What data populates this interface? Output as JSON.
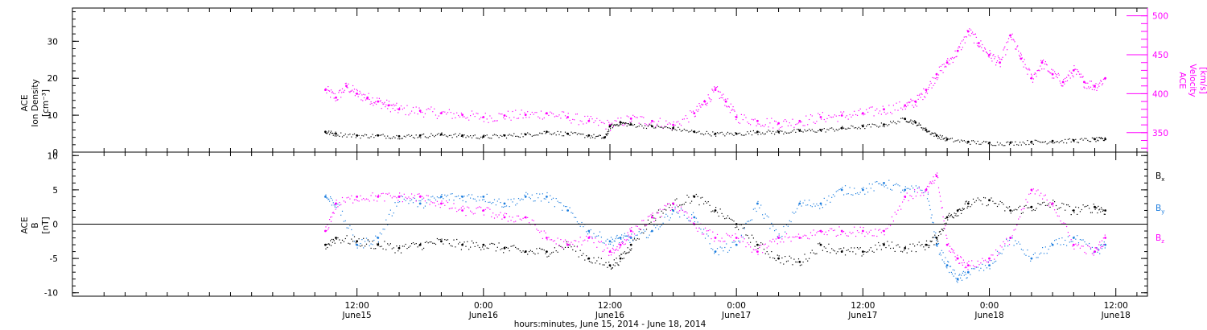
{
  "colors": {
    "density": "#000000",
    "velocity": "#ff00ff",
    "bx": "#000000",
    "by": "#1f7fdf",
    "bz": "#ff00ff"
  },
  "xaxis": {
    "range_hours": [
      -15,
      87
    ],
    "ticks": [
      {
        "hour": 12,
        "time": "12:00",
        "date": "June15"
      },
      {
        "hour": 24,
        "time": "0:00",
        "date": "June16"
      },
      {
        "hour": 36,
        "time": "12:00",
        "date": "June16"
      },
      {
        "hour": 48,
        "time": "0:00",
        "date": "June17"
      },
      {
        "hour": 60,
        "time": "12:00",
        "date": "June17"
      },
      {
        "hour": 72,
        "time": "0:00",
        "date": "June18"
      },
      {
        "hour": 84,
        "time": "12:00",
        "date": "June18"
      }
    ],
    "label": "hours:minutes, June 15, 2014 - June 18, 2014"
  },
  "chart_data": [
    {
      "type": "scatter",
      "panel": "top",
      "ylabel_left": [
        "ACE",
        "Ion Density",
        "[cm⁻³]"
      ],
      "ylabel_right": [
        "ACE",
        "Velocity",
        "[km/s]"
      ],
      "ylim_left": [
        0,
        39
      ],
      "ylim_right": [
        325,
        510
      ],
      "yticks_left": [
        0,
        10,
        20,
        30
      ],
      "yticks_right": [
        350,
        400,
        450,
        500
      ],
      "series": [
        {
          "axis": "left",
          "x": [
            9,
            10,
            12,
            14,
            16,
            18,
            20,
            22,
            24,
            26,
            28,
            30,
            32,
            34,
            35.5,
            36,
            37,
            38,
            40,
            42,
            44,
            46,
            48,
            50,
            52,
            54,
            56,
            58,
            60,
            62,
            64,
            65,
            66,
            67,
            68,
            70,
            72,
            74,
            76,
            78,
            80,
            82,
            83
          ],
          "values": [
            5.5,
            5,
            4.5,
            4.5,
            4.3,
            4.5,
            4.8,
            4.5,
            4.2,
            4.5,
            4.8,
            5.5,
            5,
            4.5,
            4,
            7,
            8,
            7.5,
            7,
            6.5,
            5.5,
            5,
            5,
            5.5,
            5.5,
            5.8,
            6,
            6.5,
            7,
            7.5,
            9,
            8,
            6,
            4.5,
            3.5,
            2.8,
            2.5,
            2.5,
            2.8,
            3,
            3.2,
            3.5,
            3.5
          ]
        },
        {
          "axis": "right",
          "x": [
            9,
            10,
            11,
            12,
            13,
            14,
            15,
            16,
            18,
            20,
            22,
            24,
            26,
            28,
            30,
            32,
            34,
            36,
            38,
            40,
            42,
            44,
            45,
            46,
            47,
            48,
            50,
            52,
            54,
            56,
            58,
            60,
            62,
            64,
            65,
            66,
            67,
            68,
            69,
            70,
            71,
            72,
            73,
            74,
            75,
            76,
            77,
            78,
            79,
            80,
            81,
            82,
            83
          ],
          "values": [
            405,
            395,
            410,
            400,
            395,
            390,
            385,
            380,
            378,
            375,
            373,
            370,
            372,
            373,
            375,
            370,
            365,
            360,
            368,
            365,
            360,
            375,
            390,
            405,
            390,
            370,
            365,
            362,
            365,
            370,
            372,
            375,
            380,
            385,
            390,
            405,
            425,
            440,
            455,
            480,
            465,
            450,
            440,
            475,
            445,
            420,
            440,
            425,
            415,
            430,
            415,
            410,
            420
          ]
        }
      ]
    },
    {
      "type": "scatter",
      "panel": "bottom",
      "ylabel": [
        "ACE",
        "B",
        "[nT]"
      ],
      "ylim": [
        -10.5,
        10.5
      ],
      "yticks": [
        -10,
        -5,
        0,
        5,
        10
      ],
      "zero_line": true,
      "series": [
        {
          "name": "Bx",
          "x": [
            9,
            10,
            12,
            14,
            16,
            18,
            20,
            22,
            24,
            26,
            28,
            30,
            32,
            34,
            36,
            37,
            38,
            40,
            42,
            44,
            46,
            48,
            50,
            52,
            54,
            56,
            58,
            60,
            62,
            64,
            66,
            67,
            68,
            69,
            70,
            72,
            74,
            76,
            78,
            80,
            82,
            83
          ],
          "values": [
            -3,
            -2,
            -2.5,
            -3,
            -3.5,
            -3,
            -2.5,
            -3,
            -3,
            -3.5,
            -4,
            -4,
            -3,
            -5,
            -6,
            -5,
            -3,
            1,
            3,
            4,
            2,
            0,
            -3,
            -5,
            -5.5,
            -3,
            -4,
            -4,
            -3,
            -3.5,
            -3,
            -2,
            1,
            2,
            3,
            3.5,
            2,
            2.5,
            3,
            2,
            2.5,
            2
          ]
        },
        {
          "name": "By",
          "x": [
            9,
            10,
            12,
            14,
            16,
            18,
            20,
            22,
            24,
            26,
            28,
            30,
            32,
            34,
            36,
            37,
            38,
            40,
            42,
            44,
            46,
            48,
            50,
            52,
            54,
            56,
            58,
            60,
            62,
            64,
            66,
            67,
            68,
            69,
            70,
            72,
            74,
            76,
            78,
            80,
            82,
            83
          ],
          "values": [
            4,
            3,
            -3,
            -2,
            4,
            3,
            4,
            4,
            4,
            3,
            4,
            4,
            2,
            -1,
            -2.5,
            -2,
            -2,
            -1,
            2,
            1,
            -4,
            -3,
            3,
            -2,
            3,
            3,
            5,
            5,
            6,
            5,
            5,
            -3,
            -6,
            -8,
            -7,
            -6,
            -2,
            -5,
            -3,
            -2,
            -4,
            -3
          ]
        },
        {
          "name": "Bz",
          "x": [
            9,
            10,
            12,
            14,
            16,
            18,
            20,
            22,
            24,
            26,
            28,
            30,
            32,
            34,
            36,
            37,
            38,
            40,
            42,
            44,
            46,
            48,
            50,
            52,
            54,
            56,
            58,
            60,
            62,
            64,
            66,
            67,
            68,
            69,
            70,
            72,
            74,
            76,
            78,
            80,
            82,
            83
          ],
          "values": [
            -1,
            3,
            4,
            4,
            4,
            4,
            3,
            2,
            2,
            1,
            1,
            -2,
            -3,
            -2,
            -4,
            -3,
            -1,
            1,
            3,
            0,
            -2,
            -2,
            -4,
            -2,
            -2,
            -1,
            -1,
            -1,
            -1,
            4,
            5,
            7,
            -3,
            -5,
            -6,
            -5,
            -2,
            5,
            3,
            -3,
            -4,
            -2
          ]
        }
      ]
    }
  ],
  "legend": [
    {
      "name": "Bx",
      "base": "B",
      "sub": "x"
    },
    {
      "name": "By",
      "base": "B",
      "sub": "y"
    },
    {
      "name": "Bz",
      "base": "B",
      "sub": "z"
    }
  ]
}
